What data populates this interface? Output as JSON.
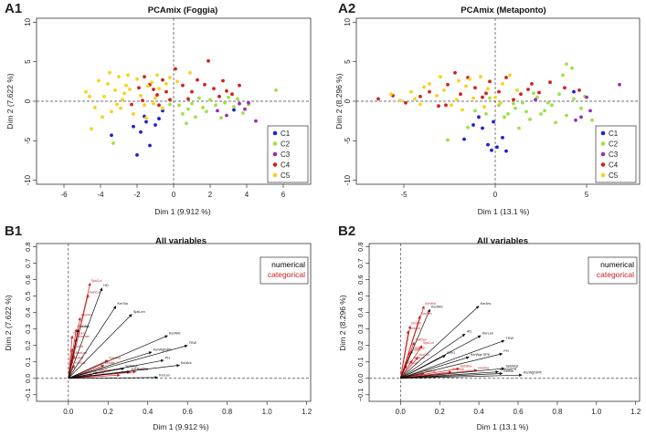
{
  "panels": [
    {
      "id": "A1",
      "label": "A1",
      "title": "PCAmix (Foggia)",
      "xlabel": "Dim 1 (9.912 %)",
      "ylabel": "Dim 2 (7.622 %)",
      "xlim": [
        -7.5,
        7.5
      ],
      "ylim": [
        -10.5,
        10.5
      ],
      "xticks": [
        -6,
        -4,
        -2,
        0,
        2,
        4,
        6
      ],
      "yticks": [
        -10,
        -5,
        0,
        5,
        10
      ],
      "legend": [
        {
          "name": "C1",
          "color": "#1f1fd6"
        },
        {
          "name": "C2",
          "color": "#9de04a"
        },
        {
          "name": "C3",
          "color": "#9b2fb0"
        },
        {
          "name": "C4",
          "color": "#d42020"
        },
        {
          "name": "C5",
          "color": "#f5d31a"
        }
      ],
      "points": {
        "C1": [
          [
            -3.4,
            -4.3
          ],
          [
            -2.2,
            -3.2
          ],
          [
            -1.8,
            -3.9
          ],
          [
            -1.5,
            -2.6
          ],
          [
            -1.3,
            -5.6
          ],
          [
            -1.0,
            -3.0
          ],
          [
            -2.0,
            -6.8
          ],
          [
            -0.8,
            -2.2
          ],
          [
            -1.6,
            -1.9
          ],
          [
            -0.6,
            -1.2
          ],
          [
            3.3,
            -1.1
          ]
        ],
        "C2": [
          [
            0.3,
            -0.5
          ],
          [
            0.5,
            -1.6
          ],
          [
            0.8,
            -1.0
          ],
          [
            1.0,
            -0.3
          ],
          [
            1.2,
            -2.0
          ],
          [
            1.4,
            0.4
          ],
          [
            1.6,
            -0.8
          ],
          [
            1.8,
            -1.3
          ],
          [
            2.0,
            0.2
          ],
          [
            2.3,
            -0.5
          ],
          [
            2.6,
            -2.1
          ],
          [
            2.8,
            -0.2
          ],
          [
            3.0,
            0.5
          ],
          [
            3.3,
            -0.7
          ],
          [
            3.5,
            0.3
          ],
          [
            3.8,
            -1.5
          ],
          [
            4.1,
            -0.4
          ],
          [
            5.6,
            1.4
          ],
          [
            -3.3,
            -5.3
          ],
          [
            0.7,
            -2.8
          ],
          [
            -0.2,
            -0.4
          ]
        ],
        "C3": [
          [
            2.9,
            -1.8
          ],
          [
            3.9,
            -1.0
          ],
          [
            4.1,
            -0.2
          ],
          [
            4.5,
            -2.5
          ],
          [
            3.6,
            -0.3
          ],
          [
            2.4,
            -1.2
          ]
        ],
        "C4": [
          [
            -2.3,
            -0.4
          ],
          [
            -1.6,
            3.1
          ],
          [
            -1.3,
            2.1
          ],
          [
            -1.1,
            1.5
          ],
          [
            -0.9,
            0.8
          ],
          [
            -0.8,
            -0.5
          ],
          [
            -0.6,
            2.7
          ],
          [
            -0.4,
            1.2
          ],
          [
            0.1,
            4.1
          ],
          [
            0.5,
            2.0
          ],
          [
            0.8,
            0.3
          ],
          [
            1.3,
            2.7
          ],
          [
            1.7,
            2.1
          ],
          [
            1.9,
            5.1
          ],
          [
            2.2,
            1.6
          ],
          [
            2.5,
            0.6
          ],
          [
            2.9,
            1.3
          ],
          [
            3.2,
            0.9
          ],
          [
            3.6,
            2.0
          ],
          [
            -1.9,
            1.7
          ],
          [
            -0.2,
            0.2
          ],
          [
            1.0,
            1.2
          ],
          [
            2.7,
            2.6
          ],
          [
            -1.7,
            0.1
          ]
        ],
        "C5": [
          [
            -4.8,
            1.2
          ],
          [
            -4.3,
            -0.8
          ],
          [
            -4.1,
            2.6
          ],
          [
            -3.8,
            0.6
          ],
          [
            -3.6,
            2.2
          ],
          [
            -3.4,
            -1.3
          ],
          [
            -3.2,
            1.4
          ],
          [
            -3.0,
            3.1
          ],
          [
            -2.8,
            0.2
          ],
          [
            -2.6,
            2.0
          ],
          [
            -2.4,
            1.5
          ],
          [
            -2.2,
            -1.6
          ],
          [
            -2.0,
            2.8
          ],
          [
            -1.8,
            0.7
          ],
          [
            -1.6,
            -0.5
          ],
          [
            -1.4,
            1.9
          ],
          [
            -1.2,
            2.4
          ],
          [
            -1.0,
            0.4
          ],
          [
            -0.8,
            1.6
          ],
          [
            -0.6,
            -0.9
          ],
          [
            -0.4,
            2.2
          ],
          [
            -0.2,
            3.0
          ],
          [
            -4.5,
            -3.5
          ],
          [
            -3.9,
            -2.0
          ],
          [
            -2.9,
            -0.9
          ],
          [
            -2.5,
            3.3
          ],
          [
            -1.5,
            -2.1
          ],
          [
            -0.9,
            3.3
          ],
          [
            0.2,
            2.5
          ],
          [
            0.9,
            3.6
          ],
          [
            -3.5,
            3.6
          ],
          [
            -2.7,
            1.0
          ],
          [
            -4.6,
            0.6
          ],
          [
            -3.1,
            -0.4
          ],
          [
            -1.1,
            -0.3
          ]
        ]
      }
    },
    {
      "id": "A2",
      "label": "A2",
      "title": "PCAmix (Metaponto)",
      "xlabel": "Dim 1 (13.1 %)",
      "ylabel": "Dim 2 (8.296 %)",
      "xlim": [
        -7.6,
        7.9
      ],
      "ylim": [
        -10.5,
        10.5
      ],
      "xticks": [
        -5,
        0,
        5
      ],
      "yticks": [
        -10,
        -5,
        0,
        5,
        10
      ],
      "legend": [
        {
          "name": "C1",
          "color": "#1f1fd6"
        },
        {
          "name": "C2",
          "color": "#9de04a"
        },
        {
          "name": "C3",
          "color": "#9b2fb0"
        },
        {
          "name": "C4",
          "color": "#d42020"
        },
        {
          "name": "C5",
          "color": "#f5d31a"
        }
      ],
      "points": {
        "C1": [
          [
            -1.7,
            -4.8
          ],
          [
            -1.2,
            -3.0
          ],
          [
            -0.7,
            -3.4
          ],
          [
            -0.4,
            -5.5
          ],
          [
            -0.2,
            -6.2
          ],
          [
            0.1,
            -5.8
          ],
          [
            0.4,
            -4.6
          ],
          [
            -0.9,
            -2.0
          ],
          [
            0.6,
            -6.3
          ],
          [
            -0.1,
            -2.6
          ],
          [
            4.3,
            1.2
          ]
        ],
        "C2": [
          [
            0.2,
            -0.5
          ],
          [
            0.7,
            -1.6
          ],
          [
            1.1,
            -0.9
          ],
          [
            1.5,
            -0.2
          ],
          [
            1.9,
            -2.3
          ],
          [
            2.3,
            0.5
          ],
          [
            2.7,
            -1.2
          ],
          [
            3.1,
            -0.5
          ],
          [
            3.5,
            0.9
          ],
          [
            3.9,
            -1.8
          ],
          [
            4.3,
            0.3
          ],
          [
            4.7,
            -0.9
          ],
          [
            5.3,
            -2.4
          ],
          [
            3.7,
            3.3
          ],
          [
            3.9,
            4.7
          ],
          [
            4.2,
            4.2
          ],
          [
            4.9,
            0.6
          ],
          [
            -2.6,
            -4.9
          ],
          [
            -1.1,
            -1.2
          ],
          [
            -1.5,
            -3.3
          ],
          [
            1.3,
            -3.4
          ],
          [
            2.5,
            -1.6
          ],
          [
            -0.5,
            -1.6
          ],
          [
            1.0,
            -0.3
          ],
          [
            2.1,
            1.0
          ],
          [
            3.3,
            -2.7
          ],
          [
            -0.3,
            0.4
          ],
          [
            0.5,
            -2.0
          ],
          [
            1.7,
            -1.3
          ],
          [
            2.9,
            -0.2
          ]
        ],
        "C3": [
          [
            4.7,
            -2.0
          ],
          [
            5.2,
            -1.2
          ],
          [
            6.8,
            2.1
          ],
          [
            4.4,
            -2.4
          ],
          [
            2.2,
            0.2
          ],
          [
            5.0,
            0.5
          ]
        ],
        "C4": [
          [
            -6.4,
            0.3
          ],
          [
            -5.6,
            0.7
          ],
          [
            -4.9,
            -0.2
          ],
          [
            -4.1,
            0.6
          ],
          [
            -3.6,
            1.2
          ],
          [
            -3.1,
            -0.6
          ],
          [
            -2.6,
            2.1
          ],
          [
            -2.2,
            3.6
          ],
          [
            -1.9,
            0.9
          ],
          [
            -1.5,
            3.0
          ],
          [
            -1.1,
            1.7
          ],
          [
            -0.7,
            0.5
          ],
          [
            -0.3,
            2.5
          ],
          [
            0.2,
            1.2
          ],
          [
            0.6,
            3.0
          ],
          [
            1.0,
            0.2
          ],
          [
            1.4,
            0.9
          ],
          [
            1.8,
            1.5
          ],
          [
            2.4,
            1.1
          ],
          [
            3.0,
            2.4
          ],
          [
            3.8,
            1.7
          ],
          [
            4.6,
            1.4
          ],
          [
            -2.7,
            -0.5
          ],
          [
            -0.5,
            1.0
          ],
          [
            2.0,
            2.2
          ]
        ],
        "C5": [
          [
            -5.7,
            0.9
          ],
          [
            -5.2,
            0.1
          ],
          [
            -4.6,
            1.2
          ],
          [
            -4.1,
            -0.4
          ],
          [
            -3.6,
            2.2
          ],
          [
            -3.2,
            0.7
          ],
          [
            -2.8,
            1.4
          ],
          [
            -2.4,
            -0.5
          ],
          [
            -2.0,
            2.6
          ],
          [
            -1.6,
            1.9
          ],
          [
            -1.2,
            0.4
          ],
          [
            -0.8,
            3.1
          ],
          [
            -0.4,
            1.6
          ],
          [
            0.0,
            0.5
          ],
          [
            0.4,
            2.2
          ],
          [
            0.8,
            3.3
          ],
          [
            1.2,
            1.4
          ],
          [
            -3.0,
            3.1
          ],
          [
            -1.8,
            -1.1
          ],
          [
            -0.6,
            -0.7
          ],
          [
            -3.9,
            1.8
          ],
          [
            -2.1,
            0.2
          ],
          [
            -1.4,
            2.8
          ],
          [
            -4.4,
            0.3
          ],
          [
            0.3,
            -0.2
          ]
        ]
      }
    },
    {
      "id": "B1",
      "label": "B1",
      "title": "All variables",
      "xlabel": "Dim 1 (9.912 %)",
      "ylabel": "Dim 2 (7.622 %)",
      "xlim": [
        -0.16,
        1.22
      ],
      "ylim": [
        -0.14,
        0.82
      ],
      "xticks": [
        0.0,
        0.2,
        0.4,
        0.6,
        0.8,
        1.0,
        1.2
      ],
      "ytick_labels": [
        "−0.1",
        "0.0",
        "0.1",
        "0.2",
        "0.3",
        "0.4",
        "0.5",
        "0.6",
        "0.7",
        "0.8"
      ],
      "legend": [
        {
          "name": "numerical",
          "color": "#000000"
        },
        {
          "name": "categorical",
          "color": "#cc1f1f"
        }
      ],
      "numerical_vars": [
        {
          "name": "HD",
          "x": 0.17,
          "y": 0.55
        },
        {
          "name": "KerTck",
          "x": 0.24,
          "y": 0.44
        },
        {
          "name": "SpkLen",
          "x": 0.32,
          "y": 0.39
        },
        {
          "name": "KerWid",
          "x": 0.5,
          "y": 0.26
        },
        {
          "name": "TKW",
          "x": 0.6,
          "y": 0.2
        },
        {
          "name": "KerWgtSPK",
          "x": 0.42,
          "y": 0.16
        },
        {
          "name": "PH",
          "x": 0.48,
          "y": 0.11
        },
        {
          "name": "KerArs",
          "x": 0.56,
          "y": 0.08
        },
        {
          "name": "KerLen",
          "x": 0.45,
          "y": 0.005
        },
        {
          "name": "KerNo",
          "x": 0.05,
          "y": 0.3
        },
        {
          "name": "SpkWgt",
          "x": 0.28,
          "y": 0.06
        },
        {
          "name": "KerNoSPK",
          "x": 0.31,
          "y": 0.04
        }
      ],
      "categorical_vars": [
        {
          "name": "SpkCol",
          "x": 0.11,
          "y": 0.58
        },
        {
          "name": "AwnCol",
          "x": 0.1,
          "y": 0.51
        },
        {
          "name": "KerPlm",
          "x": 0.06,
          "y": 0.37
        },
        {
          "name": "GluCol",
          "x": 0.04,
          "y": 0.3
        },
        {
          "name": "SpkDen",
          "x": 0.02,
          "y": 0.26
        },
        {
          "name": "GrwHab",
          "x": 0.04,
          "y": 0.24
        },
        {
          "name": "AurCol",
          "x": 0.02,
          "y": 0.18
        },
        {
          "name": "AwnLen",
          "x": 0.03,
          "y": 0.14
        },
        {
          "name": "GluHar",
          "x": 0.02,
          "y": 0.11
        },
        {
          "name": "KerCol",
          "x": 0.03,
          "y": 0.08
        },
        {
          "name": "SpkSha",
          "x": 0.2,
          "y": 0.11
        },
        {
          "name": "LeaAtt",
          "x": 0.18,
          "y": 0.08
        },
        {
          "name": "GluSha",
          "x": 0.34,
          "y": 0.04
        },
        {
          "name": "BeaShp",
          "x": 0.15,
          "y": 0.035
        },
        {
          "name": "KerSha",
          "x": 0.12,
          "y": 0.02
        },
        {
          "name": "StmCol",
          "x": 0.26,
          "y": 0.02
        }
      ]
    },
    {
      "id": "B2",
      "label": "B2",
      "title": "All variables",
      "xlabel": "Dim 1 (13.1 %)",
      "ylabel": "Dim 2 (8.296 %)",
      "xlim": [
        -0.16,
        1.22
      ],
      "ylim": [
        -0.14,
        0.82
      ],
      "xticks": [
        0.0,
        0.2,
        0.4,
        0.6,
        0.8,
        1.0,
        1.2
      ],
      "ytick_labels": [
        "−0.1",
        "0.0",
        "0.1",
        "0.2",
        "0.3",
        "0.4",
        "0.5",
        "0.6",
        "0.7",
        "0.8"
      ],
      "legend": [
        {
          "name": "numerical",
          "color": "#000000"
        },
        {
          "name": "categorical",
          "color": "#cc1f1f"
        }
      ],
      "numerical_vars": [
        {
          "name": "KerArs",
          "x": 0.4,
          "y": 0.44
        },
        {
          "name": "KerWid",
          "x": 0.15,
          "y": 0.42
        },
        {
          "name": "HD",
          "x": 0.33,
          "y": 0.27
        },
        {
          "name": "KerLen",
          "x": 0.41,
          "y": 0.26
        },
        {
          "name": "TKW",
          "x": 0.53,
          "y": 0.23
        },
        {
          "name": "PH",
          "x": 0.52,
          "y": 0.15
        },
        {
          "name": "KerWgt SPK",
          "x": 0.35,
          "y": 0.13
        },
        {
          "name": "SPKl",
          "x": 0.23,
          "y": 0.14
        },
        {
          "name": "SpkWgt",
          "x": 0.53,
          "y": 0.06
        },
        {
          "name": "KerNoSPK",
          "x": 0.5,
          "y": 0.04
        },
        {
          "name": "KerNo",
          "x": 0.52,
          "y": 0.03
        },
        {
          "name": "KerWgtSPK",
          "x": 0.62,
          "y": 0.02
        }
      ],
      "categorical_vars": [
        {
          "name": "KerWid",
          "x": 0.12,
          "y": 0.44
        },
        {
          "name": "KerPlm",
          "x": 0.1,
          "y": 0.38
        },
        {
          "name": "GluCol",
          "x": 0.05,
          "y": 0.32
        },
        {
          "name": "AwnCol",
          "x": 0.04,
          "y": 0.29
        },
        {
          "name": "SpkDen",
          "x": 0.07,
          "y": 0.22
        },
        {
          "name": "SpkCol",
          "x": 0.11,
          "y": 0.2
        },
        {
          "name": "GrwHab",
          "x": 0.06,
          "y": 0.17
        },
        {
          "name": "LeaAtt",
          "x": 0.05,
          "y": 0.16
        },
        {
          "name": "AurCol",
          "x": 0.09,
          "y": 0.13
        },
        {
          "name": "AwnLen",
          "x": 0.06,
          "y": 0.11
        },
        {
          "name": "KerCol",
          "x": 0.03,
          "y": 0.08
        },
        {
          "name": "SpkSha",
          "x": 0.3,
          "y": 0.06
        },
        {
          "name": "GluSha",
          "x": 0.39,
          "y": 0.05
        },
        {
          "name": "BeaShp",
          "x": 0.26,
          "y": 0.04
        },
        {
          "name": "StmCol",
          "x": 0.12,
          "y": 0.03
        }
      ]
    }
  ]
}
